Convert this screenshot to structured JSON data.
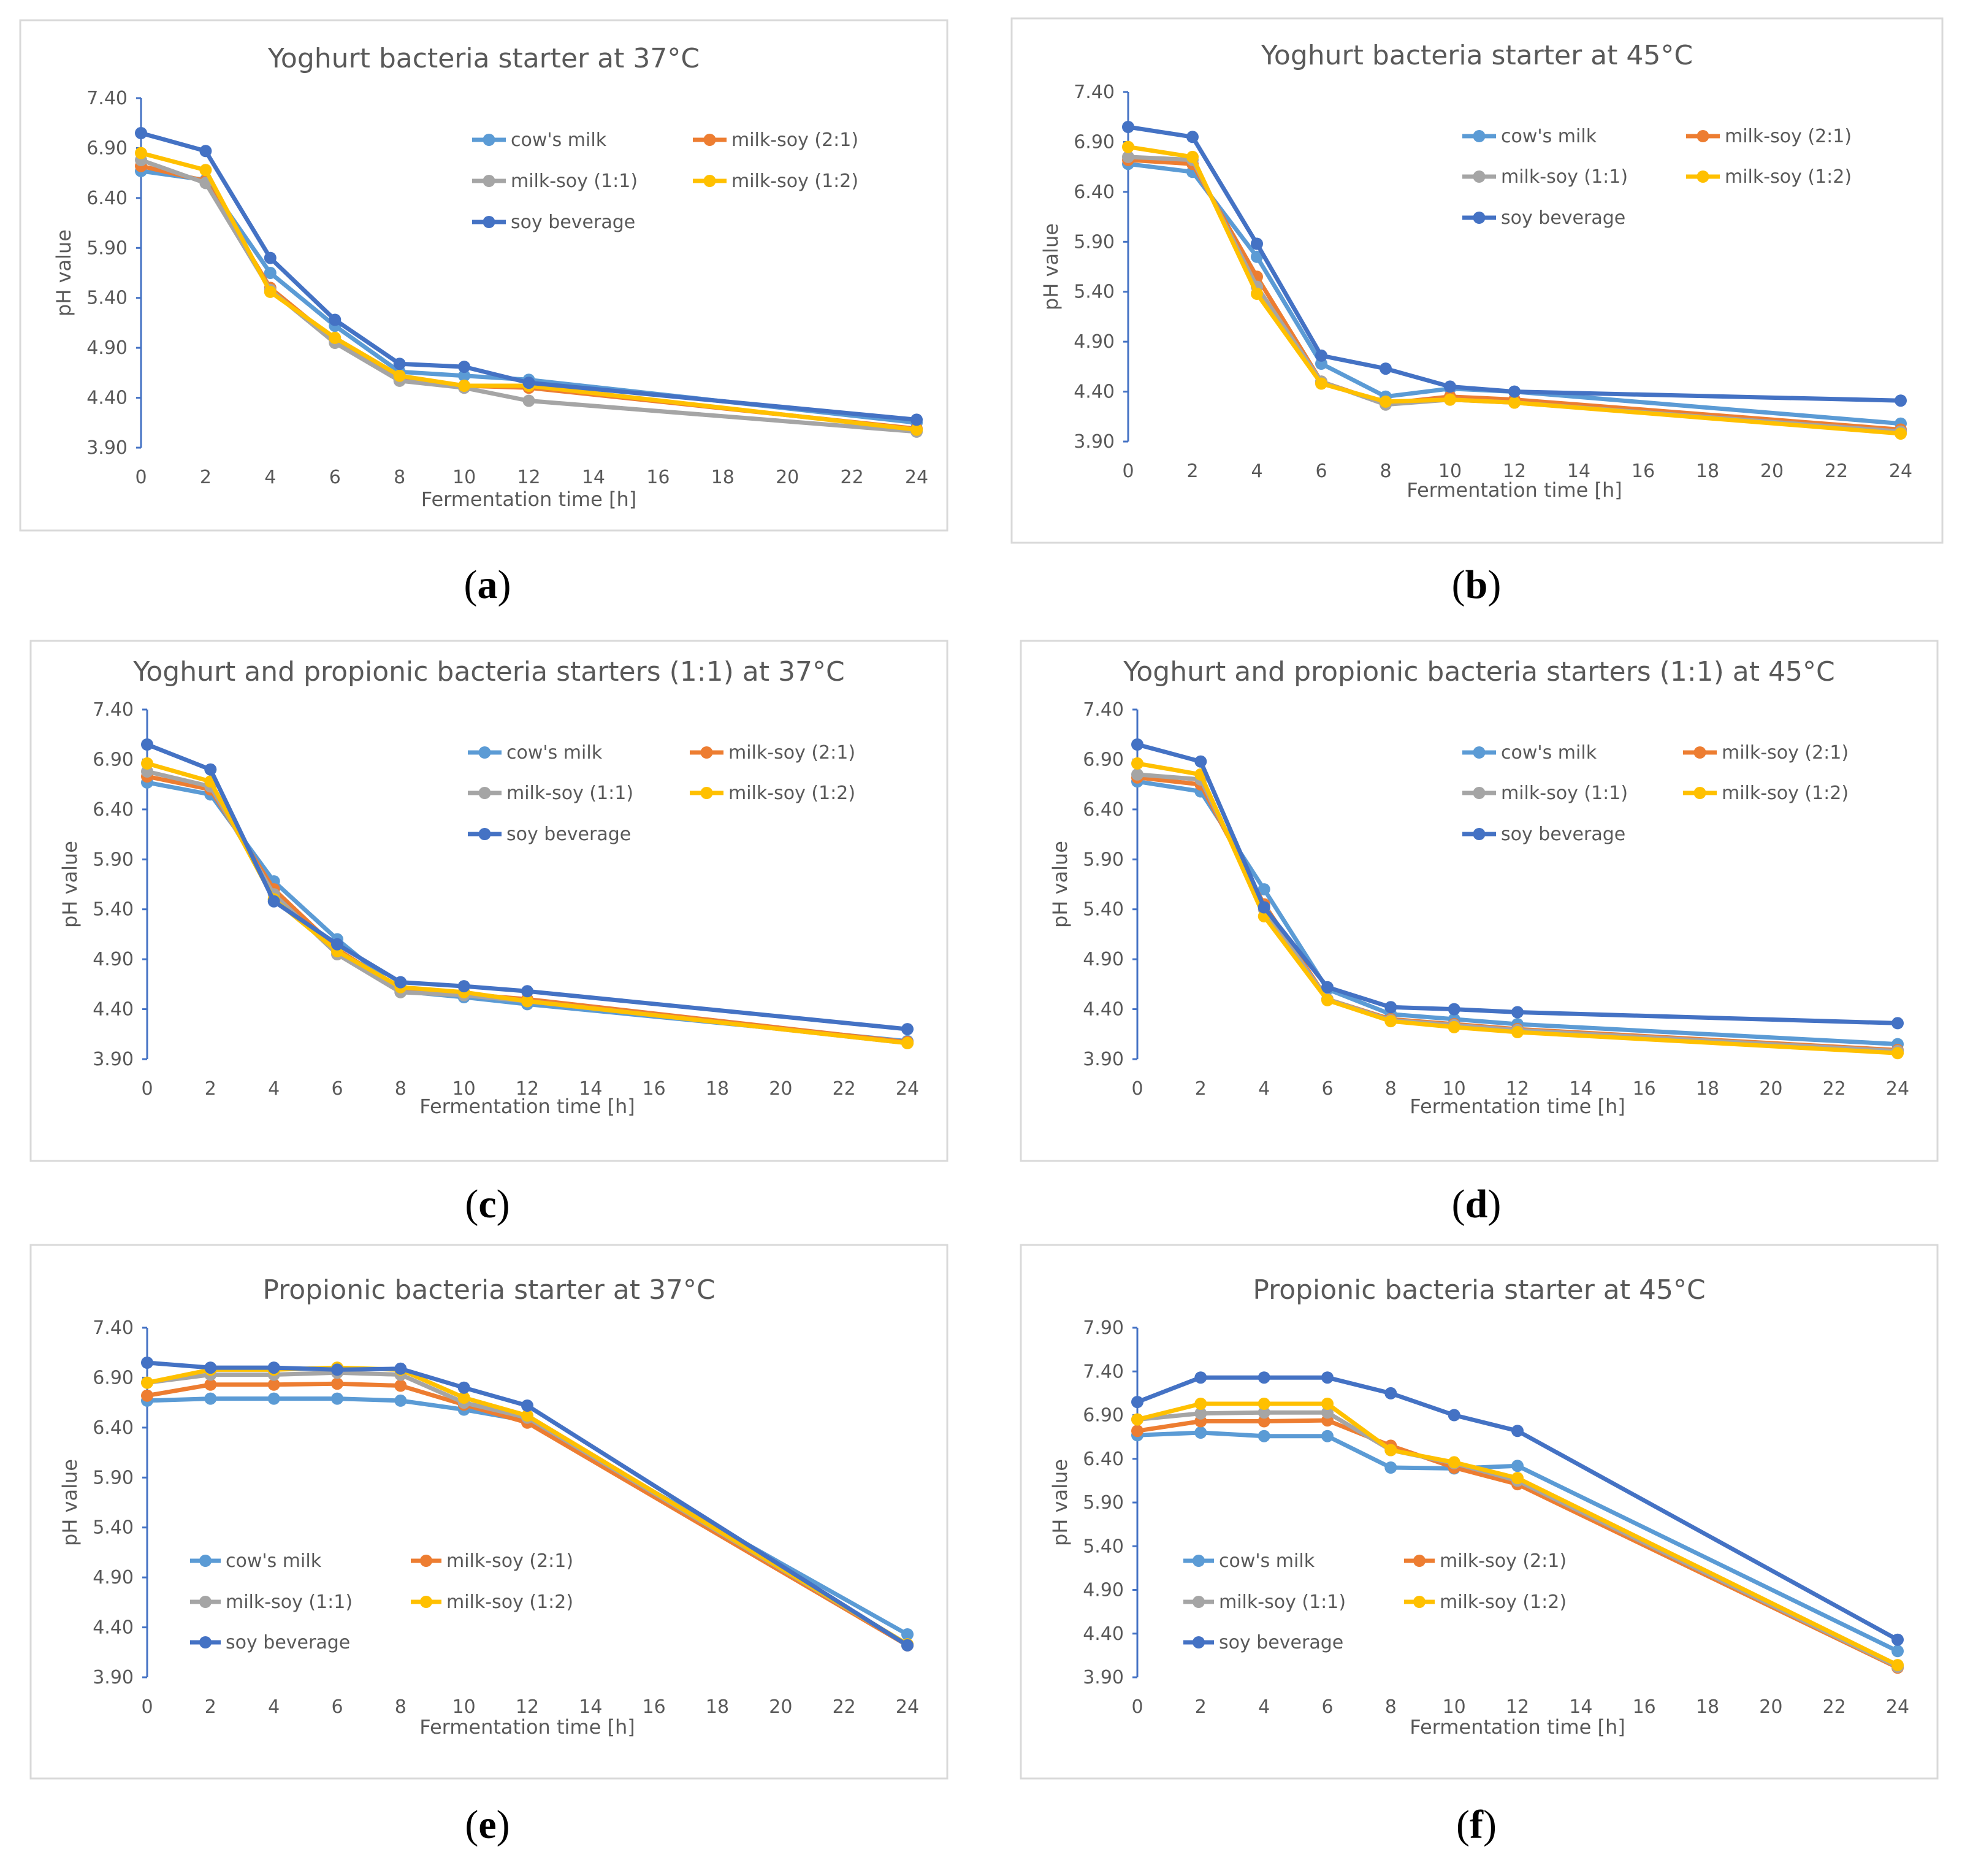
{
  "figure": {
    "series_names": [
      "cow's milk",
      "milk-soy (2:1)",
      "milk-soy (1:1)",
      "milk-soy (1:2)",
      "soy beverage"
    ],
    "series_colors": [
      "#5b9bd5",
      "#ed7d31",
      "#a5a5a5",
      "#ffc000",
      "#4472c4"
    ]
  },
  "chart_data": [
    {
      "type": "line",
      "caption": "(a)",
      "title": "Yoghurt bacteria starter at 37°C",
      "xlabel": "Fermentation time [h]",
      "ylabel": "pH value",
      "xlim": [
        0,
        24
      ],
      "ylim": [
        3.9,
        7.4
      ],
      "xticks": [
        0,
        2,
        4,
        6,
        8,
        10,
        12,
        14,
        16,
        18,
        20,
        22,
        24
      ],
      "yticks": [
        "3.90",
        "4.40",
        "4.90",
        "5.40",
        "5.90",
        "6.40",
        "6.90",
        "7.40"
      ],
      "legend_position": "top-right",
      "x": [
        0,
        2,
        4,
        6,
        8,
        10,
        12,
        24
      ],
      "series": [
        {
          "name": "cow's milk",
          "values": [
            6.67,
            6.58,
            5.65,
            5.12,
            4.66,
            4.62,
            4.58,
            4.15
          ]
        },
        {
          "name": "milk-soy (2:1)",
          "values": [
            6.72,
            6.57,
            5.5,
            4.97,
            4.6,
            4.52,
            4.5,
            4.09
          ]
        },
        {
          "name": "milk-soy (1:1)",
          "values": [
            6.78,
            6.55,
            5.48,
            4.95,
            4.57,
            4.5,
            4.37,
            4.06
          ]
        },
        {
          "name": "milk-soy (1:2)",
          "values": [
            6.85,
            6.68,
            5.46,
            5.0,
            4.62,
            4.52,
            4.52,
            4.08
          ]
        },
        {
          "name": "soy beverage",
          "values": [
            7.05,
            6.87,
            5.8,
            5.18,
            4.74,
            4.71,
            4.55,
            4.18
          ]
        }
      ]
    },
    {
      "type": "line",
      "caption": "(b)",
      "title": "Yoghurt bacteria starter at 45°C",
      "xlabel": "Fermentation time [h]",
      "ylabel": "pH value",
      "xlim": [
        0,
        24
      ],
      "ylim": [
        3.9,
        7.4
      ],
      "xticks": [
        0,
        2,
        4,
        6,
        8,
        10,
        12,
        14,
        16,
        18,
        20,
        22,
        24
      ],
      "yticks": [
        "3.90",
        "4.40",
        "4.90",
        "5.40",
        "5.90",
        "6.40",
        "6.90",
        "7.40"
      ],
      "legend_position": "top-right",
      "x": [
        0,
        2,
        4,
        6,
        8,
        10,
        12,
        24
      ],
      "series": [
        {
          "name": "cow's milk",
          "values": [
            6.68,
            6.6,
            5.75,
            4.68,
            4.35,
            4.43,
            4.4,
            4.08
          ]
        },
        {
          "name": "milk-soy (2:1)",
          "values": [
            6.72,
            6.68,
            5.55,
            4.5,
            4.28,
            4.35,
            4.32,
            4.02
          ]
        },
        {
          "name": "milk-soy (1:1)",
          "values": [
            6.75,
            6.72,
            5.45,
            4.5,
            4.27,
            4.32,
            4.29,
            4.0
          ]
        },
        {
          "name": "milk-soy (1:2)",
          "values": [
            6.85,
            6.75,
            5.38,
            4.48,
            4.3,
            4.32,
            4.29,
            3.98
          ]
        },
        {
          "name": "soy beverage",
          "values": [
            7.05,
            6.95,
            5.88,
            4.76,
            4.63,
            4.45,
            4.4,
            4.31
          ]
        }
      ]
    },
    {
      "type": "line",
      "caption": "(c)",
      "title": "Yoghurt and propionic bacteria starters (1:1) at 37°C",
      "xlabel": "Fermentation time [h]",
      "ylabel": "pH value",
      "xlim": [
        0,
        24
      ],
      "ylim": [
        3.9,
        7.4
      ],
      "xticks": [
        0,
        2,
        4,
        6,
        8,
        10,
        12,
        14,
        16,
        18,
        20,
        22,
        24
      ],
      "yticks": [
        "3.90",
        "4.40",
        "4.90",
        "5.40",
        "5.90",
        "6.40",
        "6.90",
        "7.40"
      ],
      "legend_position": "top-right",
      "x": [
        0,
        2,
        4,
        6,
        8,
        10,
        12,
        24
      ],
      "series": [
        {
          "name": "cow's milk",
          "values": [
            6.67,
            6.55,
            5.68,
            5.1,
            4.58,
            4.52,
            4.45,
            4.08
          ]
        },
        {
          "name": "milk-soy (2:1)",
          "values": [
            6.73,
            6.6,
            5.6,
            5.0,
            4.6,
            4.55,
            4.5,
            4.07
          ]
        },
        {
          "name": "milk-soy (1:1)",
          "values": [
            6.78,
            6.63,
            5.55,
            4.95,
            4.57,
            4.54,
            4.48,
            4.06
          ]
        },
        {
          "name": "milk-soy (1:2)",
          "values": [
            6.86,
            6.68,
            5.5,
            4.98,
            4.62,
            4.57,
            4.48,
            4.06
          ]
        },
        {
          "name": "soy beverage",
          "values": [
            7.05,
            6.8,
            5.48,
            5.05,
            4.67,
            4.63,
            4.58,
            4.2
          ]
        }
      ]
    },
    {
      "type": "line",
      "caption": "(d)",
      "title": "Yoghurt and propionic bacteria starters (1:1) at 45°C",
      "xlabel": "Fermentation time [h]",
      "ylabel": "pH value",
      "xlim": [
        0,
        24
      ],
      "ylim": [
        3.9,
        7.4
      ],
      "xticks": [
        0,
        2,
        4,
        6,
        8,
        10,
        12,
        14,
        16,
        18,
        20,
        22,
        24
      ],
      "yticks": [
        "3.90",
        "4.40",
        "4.90",
        "5.40",
        "5.90",
        "6.40",
        "6.90",
        "7.40"
      ],
      "legend_position": "top-right",
      "x": [
        0,
        2,
        4,
        6,
        8,
        10,
        12,
        24
      ],
      "series": [
        {
          "name": "cow's milk",
          "values": [
            6.68,
            6.58,
            5.6,
            4.6,
            4.35,
            4.3,
            4.25,
            4.05
          ]
        },
        {
          "name": "milk-soy (2:1)",
          "values": [
            6.72,
            6.65,
            5.45,
            4.5,
            4.3,
            4.25,
            4.2,
            3.99
          ]
        },
        {
          "name": "milk-soy (1:1)",
          "values": [
            6.75,
            6.7,
            5.4,
            4.5,
            4.29,
            4.24,
            4.19,
            3.98
          ]
        },
        {
          "name": "milk-soy (1:2)",
          "values": [
            6.86,
            6.75,
            5.33,
            4.49,
            4.28,
            4.22,
            4.17,
            3.96
          ]
        },
        {
          "name": "soy beverage",
          "values": [
            7.05,
            6.88,
            5.42,
            4.62,
            4.42,
            4.4,
            4.37,
            4.26
          ]
        }
      ]
    },
    {
      "type": "line",
      "caption": "(e)",
      "title": "Propionic bacteria starter at 37°C",
      "xlabel": "Fermentation time [h]",
      "ylabel": "pH value",
      "xlim": [
        0,
        24
      ],
      "ylim": [
        3.9,
        7.4
      ],
      "xticks": [
        0,
        2,
        4,
        6,
        8,
        10,
        12,
        14,
        16,
        18,
        20,
        22,
        24
      ],
      "yticks": [
        "3.90",
        "4.40",
        "4.90",
        "5.40",
        "5.90",
        "6.40",
        "6.90",
        "7.40"
      ],
      "legend_position": "bottom-left",
      "x": [
        0,
        2,
        4,
        6,
        8,
        10,
        12,
        24
      ],
      "series": [
        {
          "name": "cow's milk",
          "values": [
            6.67,
            6.69,
            6.69,
            6.69,
            6.67,
            6.58,
            6.47,
            4.33
          ]
        },
        {
          "name": "milk-soy (2:1)",
          "values": [
            6.72,
            6.83,
            6.83,
            6.84,
            6.82,
            6.63,
            6.45,
            4.22
          ]
        },
        {
          "name": "milk-soy (1:1)",
          "values": [
            6.85,
            6.93,
            6.93,
            6.95,
            6.93,
            6.65,
            6.5,
            4.23
          ]
        },
        {
          "name": "milk-soy (1:2)",
          "values": [
            6.85,
            6.98,
            6.98,
            7.0,
            6.98,
            6.7,
            6.52,
            4.23
          ]
        },
        {
          "name": "soy beverage",
          "values": [
            7.05,
            7.0,
            7.0,
            6.98,
            6.99,
            6.8,
            6.62,
            4.22
          ]
        }
      ]
    },
    {
      "type": "line",
      "caption": "(f)",
      "title": "Propionic bacteria starter at 45°C",
      "xlabel": "Fermentation time [h]",
      "ylabel": "pH value",
      "xlim": [
        0,
        24
      ],
      "ylim": [
        3.9,
        7.9
      ],
      "xticks": [
        0,
        2,
        4,
        6,
        8,
        10,
        12,
        14,
        16,
        18,
        20,
        22,
        24
      ],
      "yticks": [
        "3.90",
        "4.40",
        "4.90",
        "5.40",
        "5.90",
        "6.40",
        "6.90",
        "7.40",
        "7.90"
      ],
      "legend_position": "bottom-left",
      "x": [
        0,
        2,
        4,
        6,
        8,
        10,
        12,
        24
      ],
      "series": [
        {
          "name": "cow's milk",
          "values": [
            6.67,
            6.7,
            6.66,
            6.66,
            6.3,
            6.29,
            6.32,
            4.2
          ]
        },
        {
          "name": "milk-soy (2:1)",
          "values": [
            6.72,
            6.83,
            6.83,
            6.84,
            6.55,
            6.3,
            6.11,
            4.01
          ]
        },
        {
          "name": "milk-soy (1:1)",
          "values": [
            6.85,
            6.92,
            6.93,
            6.93,
            6.5,
            6.35,
            6.15,
            4.02
          ]
        },
        {
          "name": "milk-soy (1:2)",
          "values": [
            6.85,
            7.03,
            7.03,
            7.03,
            6.5,
            6.36,
            6.18,
            4.04
          ]
        },
        {
          "name": "soy beverage",
          "values": [
            7.05,
            7.33,
            7.33,
            7.33,
            7.15,
            6.9,
            6.72,
            4.33
          ]
        }
      ]
    }
  ]
}
